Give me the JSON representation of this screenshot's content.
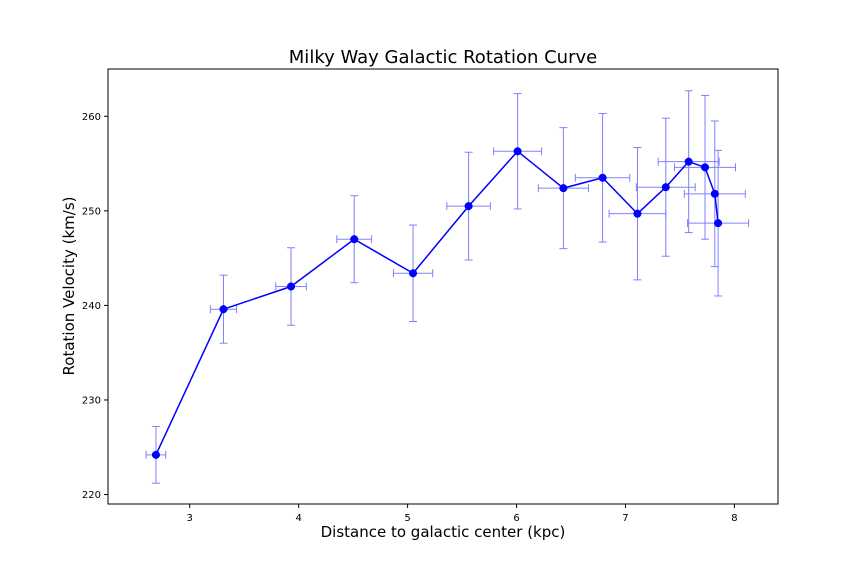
{
  "chart_data": {
    "type": "scatter",
    "title": "Milky Way Galactic Rotation Curve",
    "xlabel": "Distance to galactic center (kpc)",
    "ylabel": "Rotation Velocity (km/s)",
    "xlim": [
      2.25,
      8.4
    ],
    "ylim": [
      219,
      265
    ],
    "x_ticks": [
      3,
      4,
      5,
      6,
      7,
      8
    ],
    "y_ticks": [
      220,
      230,
      240,
      250,
      260
    ],
    "grid": false,
    "connected_line": true,
    "colors": {
      "line": "#0000ff",
      "marker": "#0000ff",
      "error_bar": "#8080ff"
    },
    "points": [
      {
        "x": 2.69,
        "y": 224.2,
        "xerr": 0.09,
        "yerr": 3.0
      },
      {
        "x": 3.31,
        "y": 239.6,
        "xerr": 0.12,
        "yerr": 3.6
      },
      {
        "x": 3.93,
        "y": 242.0,
        "xerr": 0.14,
        "yerr": 4.1
      },
      {
        "x": 4.51,
        "y": 247.0,
        "xerr": 0.16,
        "yerr": 4.6
      },
      {
        "x": 5.05,
        "y": 243.4,
        "xerr": 0.18,
        "yerr": 5.1
      },
      {
        "x": 5.56,
        "y": 250.5,
        "xerr": 0.2,
        "yerr": 5.7
      },
      {
        "x": 6.01,
        "y": 256.3,
        "xerr": 0.22,
        "yerr": 6.1
      },
      {
        "x": 6.43,
        "y": 252.4,
        "xerr": 0.23,
        "yerr": 6.4
      },
      {
        "x": 6.79,
        "y": 253.5,
        "xerr": 0.25,
        "yerr": 6.8
      },
      {
        "x": 7.11,
        "y": 249.7,
        "xerr": 0.26,
        "yerr": 7.0
      },
      {
        "x": 7.37,
        "y": 252.5,
        "xerr": 0.27,
        "yerr": 7.3
      },
      {
        "x": 7.58,
        "y": 255.2,
        "xerr": 0.28,
        "yerr": 7.5
      },
      {
        "x": 7.73,
        "y": 254.6,
        "xerr": 0.28,
        "yerr": 7.6
      },
      {
        "x": 7.82,
        "y": 251.8,
        "xerr": 0.28,
        "yerr": 7.7
      },
      {
        "x": 7.85,
        "y": 248.7,
        "xerr": 0.28,
        "yerr": 7.7
      }
    ]
  }
}
